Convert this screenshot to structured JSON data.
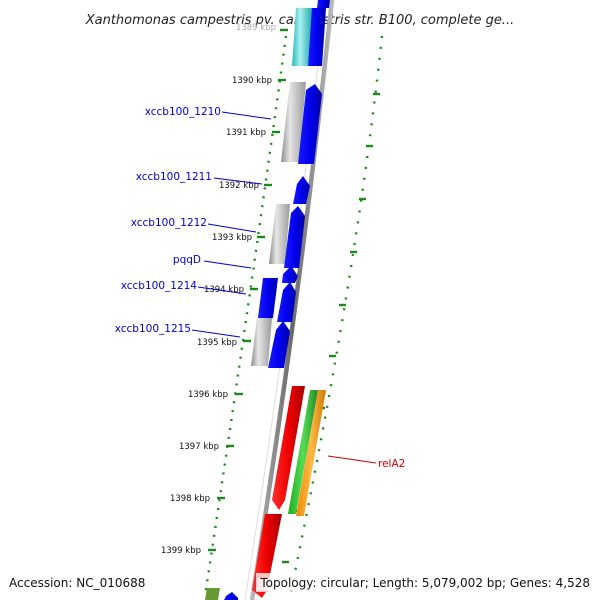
{
  "header": {
    "title": "Xanthomonas campestris pv. campestris str. B100, complete ge..."
  },
  "ticks": [
    {
      "label": "1389 kbp"
    },
    {
      "label": "1390 kbp"
    },
    {
      "label": "1391 kbp"
    },
    {
      "label": "1392 kbp"
    },
    {
      "label": "1393 kbp"
    },
    {
      "label": "1394 kbp"
    },
    {
      "label": "1395 kbp"
    },
    {
      "label": "1396 kbp"
    },
    {
      "label": "1397 kbp"
    },
    {
      "label": "1398 kbp"
    },
    {
      "label": "1399 kbp"
    }
  ],
  "genes": [
    {
      "label": "xccb100_1210",
      "color": "#0000cc"
    },
    {
      "label": "xccb100_1211",
      "color": "#0000cc"
    },
    {
      "label": "xccb100_1212",
      "color": "#0000cc"
    },
    {
      "label": "pqqD",
      "color": "#0000cc"
    },
    {
      "label": "xccb100_1214",
      "color": "#0000cc"
    },
    {
      "label": "xccb100_1215",
      "color": "#0000cc"
    },
    {
      "label": "relA2",
      "color": "#cc0000"
    }
  ],
  "colors": {
    "backbone": "#8a8a8a",
    "gc_skew_ticks": "#1a8a1a",
    "cds_blue": "#0000ee",
    "cds_red": "#ee0000",
    "trna_green": "#33cc33",
    "orange": "#ff9900",
    "cyan": "#33cccc",
    "grey_feature": "#b0b0b0",
    "olive": "#669933"
  },
  "footer": {
    "accession": "Accession: NC_010688",
    "info": "Topology: circular; Length: 5,079,002 bp; Genes: 4,528"
  }
}
